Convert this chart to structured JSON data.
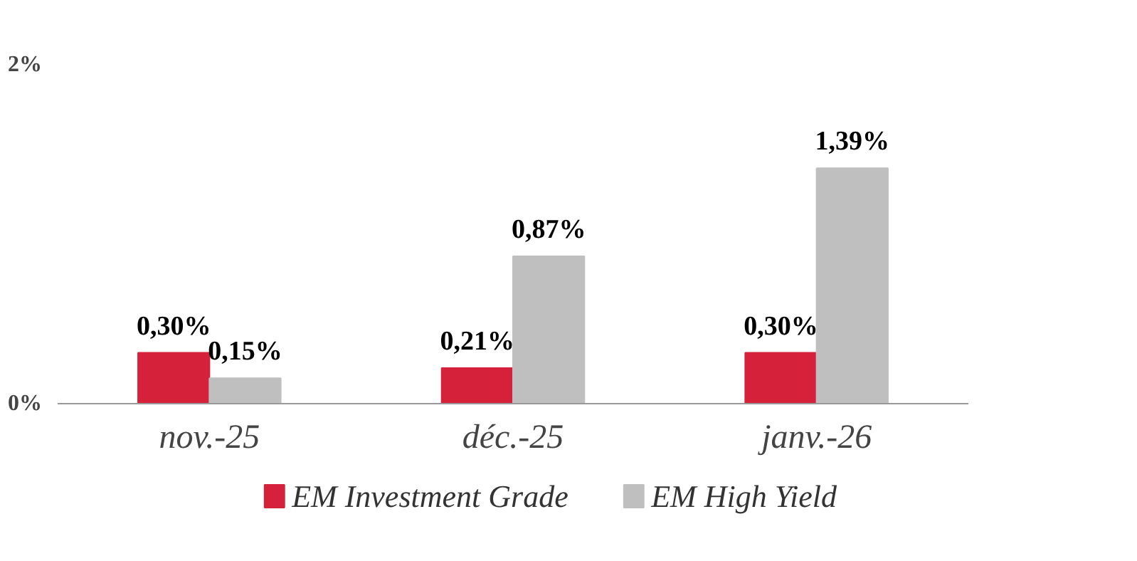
{
  "chart_data": {
    "type": "bar",
    "categories": [
      "nov.-25",
      "déc.-25",
      "janv.-26"
    ],
    "series": [
      {
        "name": "EM Investment Grade",
        "color": "#d5213a",
        "values": [
          0.3,
          0.21,
          0.3
        ],
        "value_labels": [
          "0,30%",
          "0,21%",
          "0,30%"
        ]
      },
      {
        "name": "EM High Yield",
        "color": "#bfbfbf",
        "values": [
          0.15,
          0.87,
          1.39
        ],
        "value_labels": [
          "0,15%",
          "0,87%",
          "1,39%"
        ]
      }
    ],
    "ylim": [
      0,
      2
    ],
    "yticks": [
      {
        "value": 0,
        "label": "0%"
      },
      {
        "value": 2,
        "label": "2%"
      }
    ],
    "grid": false,
    "legend": "bottom"
  }
}
